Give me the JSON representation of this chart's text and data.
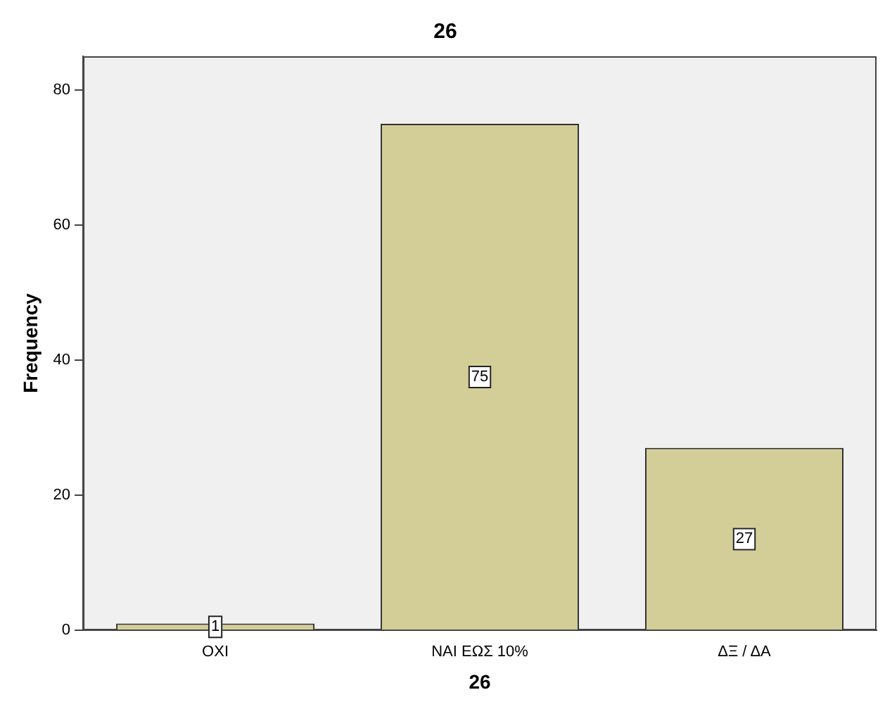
{
  "chart_data": {
    "type": "bar",
    "title": "26",
    "xlabel": "26",
    "ylabel": "Frequency",
    "categories": [
      "ΟΧΙ",
      "ΝΑΙ ΕΩΣ 10%",
      "ΔΞ / ΔΑ"
    ],
    "values": [
      1,
      75,
      27
    ],
    "color": "#d3ce97",
    "ylim": [
      0,
      85
    ],
    "yticks": [
      0,
      20,
      40,
      60,
      80
    ],
    "grid": false,
    "data_labels": true
  }
}
